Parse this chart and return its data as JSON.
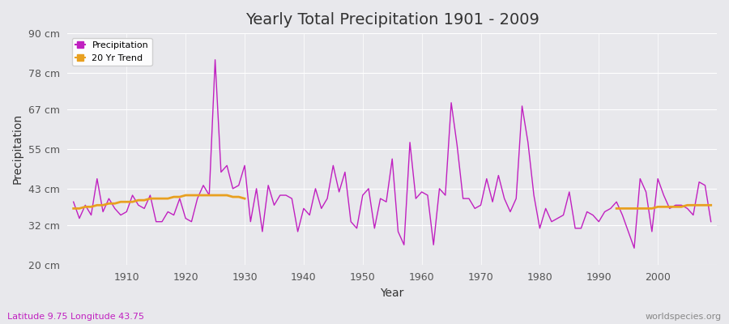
{
  "title": "Yearly Total Precipitation 1901 - 2009",
  "xlabel": "Year",
  "ylabel": "Precipitation",
  "lat_lon_label": "Latitude 9.75 Longitude 43.75",
  "watermark": "worldspecies.org",
  "ylim": [
    20,
    90
  ],
  "yticks": [
    20,
    32,
    43,
    55,
    67,
    78,
    90
  ],
  "ytick_labels": [
    "20 cm",
    "32 cm",
    "43 cm",
    "55 cm",
    "67 cm",
    "78 cm",
    "90 cm"
  ],
  "xlim": [
    1901,
    2009
  ],
  "bg_color": "#e8e8ec",
  "plot_bg_color": "#e8e8ec",
  "precip_color": "#c020c0",
  "trend_color": "#e8a020",
  "years": [
    1901,
    1902,
    1903,
    1904,
    1905,
    1906,
    1907,
    1908,
    1909,
    1910,
    1911,
    1912,
    1913,
    1914,
    1915,
    1916,
    1917,
    1918,
    1919,
    1920,
    1921,
    1922,
    1923,
    1924,
    1925,
    1926,
    1927,
    1928,
    1929,
    1930,
    1931,
    1932,
    1933,
    1934,
    1935,
    1936,
    1937,
    1938,
    1939,
    1940,
    1941,
    1942,
    1943,
    1944,
    1945,
    1946,
    1947,
    1948,
    1949,
    1950,
    1951,
    1952,
    1953,
    1954,
    1955,
    1956,
    1957,
    1958,
    1959,
    1960,
    1961,
    1962,
    1963,
    1964,
    1965,
    1966,
    1967,
    1968,
    1969,
    1970,
    1971,
    1972,
    1973,
    1974,
    1975,
    1976,
    1977,
    1978,
    1979,
    1980,
    1981,
    1982,
    1983,
    1984,
    1985,
    1986,
    1987,
    1988,
    1989,
    1990,
    1991,
    1992,
    1993,
    1994,
    1995,
    1996,
    1997,
    1998,
    1999,
    2000,
    2001,
    2002,
    2003,
    2004,
    2005,
    2006,
    2007,
    2008,
    2009
  ],
  "precip": [
    39,
    34,
    38,
    35,
    46,
    36,
    40,
    37,
    35,
    36,
    41,
    38,
    37,
    41,
    33,
    33,
    36,
    35,
    40,
    34,
    33,
    40,
    44,
    41,
    82,
    48,
    50,
    43,
    44,
    50,
    33,
    43,
    30,
    44,
    38,
    41,
    41,
    40,
    30,
    37,
    35,
    43,
    37,
    40,
    50,
    42,
    48,
    33,
    31,
    41,
    43,
    31,
    40,
    39,
    52,
    30,
    26,
    57,
    40,
    42,
    41,
    26,
    43,
    41,
    69,
    56,
    40,
    40,
    37,
    38,
    46,
    39,
    47,
    40,
    36,
    40,
    68,
    57,
    41,
    31,
    37,
    33,
    34,
    35,
    42,
    31,
    31,
    36,
    35,
    33,
    36,
    37,
    39,
    35,
    30,
    25,
    46,
    42,
    30,
    46,
    41,
    37,
    38,
    38,
    37,
    35,
    45,
    44,
    33
  ],
  "trend_years": [
    1901,
    1902,
    1903,
    1904,
    1905,
    1906,
    1907,
    1908,
    1909,
    1910,
    1911,
    1912,
    1913,
    1914,
    1915,
    1916,
    1917,
    1918,
    1919,
    1920,
    1921,
    1922,
    1923,
    1924,
    1925,
    1926,
    1927,
    1928,
    1929,
    1930,
    1993,
    1994,
    1995,
    1996,
    1997,
    1998,
    1999,
    2000,
    2001,
    2002,
    2003,
    2004,
    2005,
    2006,
    2007,
    2008,
    2009
  ],
  "trend_values": [
    37,
    37,
    37.5,
    37.5,
    38,
    38,
    38.5,
    38.5,
    39,
    39,
    39,
    39.5,
    39.5,
    40,
    40,
    40,
    40,
    40.5,
    40.5,
    41,
    41,
    41,
    41,
    41,
    41,
    41,
    41,
    40.5,
    40.5,
    40,
    37,
    37,
    37,
    37,
    37,
    37,
    37,
    37.5,
    37.5,
    37.5,
    37.5,
    37.5,
    38,
    38,
    38,
    38,
    38
  ]
}
